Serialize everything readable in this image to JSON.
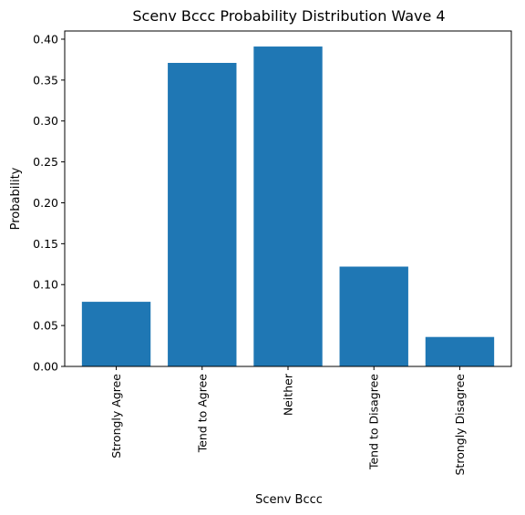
{
  "chart_data": {
    "type": "bar",
    "title": "Scenv Bccc Probability Distribution Wave 4",
    "xlabel": "Scenv Bccc",
    "ylabel": "Probability",
    "categories": [
      "Strongly Agree",
      "Tend to Agree",
      "Neither",
      "Tend to Disagree",
      "Strongly Disagree"
    ],
    "values": [
      0.079,
      0.371,
      0.391,
      0.122,
      0.036
    ],
    "ylim": [
      0,
      0.41
    ],
    "yticks": [
      "0.00",
      "0.05",
      "0.10",
      "0.15",
      "0.20",
      "0.25",
      "0.30",
      "0.35",
      "0.40"
    ],
    "bar_color": "#1f77b4",
    "grid": false,
    "legend": "none"
  }
}
